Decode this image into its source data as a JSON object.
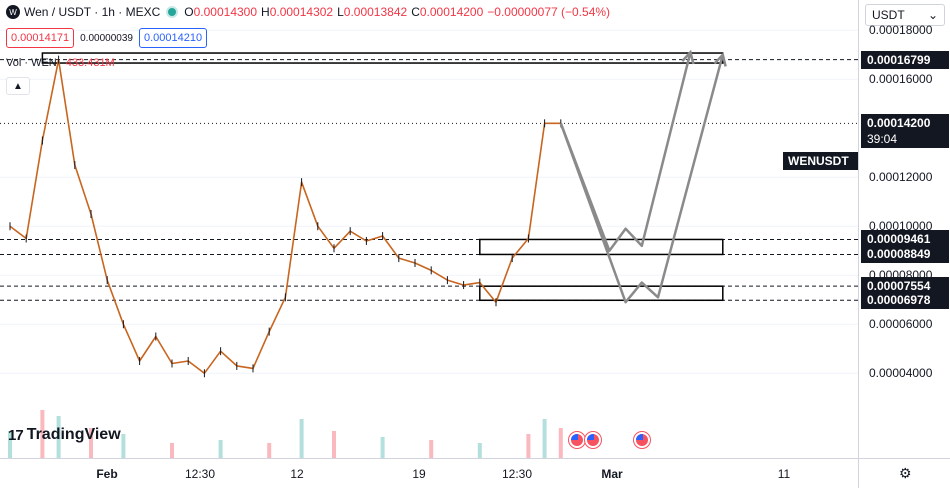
{
  "legend": {
    "symbol_icon": "wen-coin-icon",
    "title": "Wen / USDT · 1h · MEXC",
    "open_label": "O",
    "open": "0.00014300",
    "high_label": "H",
    "high": "0.00014302",
    "low_label": "L",
    "low": "0.00013842",
    "close_label": "C",
    "close": "0.00014200",
    "change": "−0.00000077 (−0.54%)"
  },
  "trade": {
    "sell_price": "0.00014171",
    "spread": "0.00000039",
    "buy_price": "0.00014210"
  },
  "volume": {
    "label": "Vol · WEN",
    "value": "433.431M"
  },
  "collapse_icon": "chevron-up-icon",
  "logo": {
    "mark": "17",
    "text": "TradingView"
  },
  "price_axis": {
    "currency": "USDT",
    "currency_icon": "chevron-down-icon",
    "labels": [
      "0.00018000",
      "0.00016000",
      "0.00012000",
      "0.00010000",
      "0.00008000",
      "0.00006000",
      "0.00004000"
    ],
    "levels": [
      "0.00016799",
      "0.00009461",
      "0.00008849",
      "0.00007554",
      "0.00006978"
    ],
    "last_price": "0.00014200",
    "countdown": "39:04",
    "symbol_tag": "WENUSDT"
  },
  "time_axis": {
    "labels": [
      {
        "text": "Feb",
        "bold": true
      },
      {
        "text": "12:30",
        "bold": false
      },
      {
        "text": "12",
        "bold": false
      },
      {
        "text": "19",
        "bold": false
      },
      {
        "text": "12:30",
        "bold": false
      },
      {
        "text": "Mar",
        "bold": true
      },
      {
        "text": "11",
        "bold": false
      }
    ],
    "settings_icon": "gear-icon"
  },
  "chart_data": {
    "type": "line",
    "title": "",
    "xlabel": "",
    "ylabel": "",
    "ylim": [
      2.2e-05,
      0.000185
    ],
    "x_start": "2024-01-26",
    "x_end": "2024-03-13",
    "series": [
      {
        "values": [
          {
            "date": "2024-01-26",
            "v": 0.0001
          },
          {
            "date": "2024-01-27",
            "v": 9.5e-05
          },
          {
            "date": "2024-01-28",
            "v": 0.000135
          },
          {
            "date": "2024-01-29",
            "v": 0.000168
          },
          {
            "date": "2024-01-30",
            "v": 0.000125
          },
          {
            "date": "2024-01-31",
            "v": 0.000105
          },
          {
            "date": "2024-02-01",
            "v": 7.8e-05
          },
          {
            "date": "2024-02-02",
            "v": 6e-05
          },
          {
            "date": "2024-02-03",
            "v": 4.5e-05
          },
          {
            "date": "2024-02-04",
            "v": 5.5e-05
          },
          {
            "date": "2024-02-05",
            "v": 4.4e-05
          },
          {
            "date": "2024-02-06",
            "v": 4.5e-05
          },
          {
            "date": "2024-02-07",
            "v": 4e-05
          },
          {
            "date": "2024-02-08",
            "v": 4.9e-05
          },
          {
            "date": "2024-02-09",
            "v": 4.3e-05
          },
          {
            "date": "2024-02-10",
            "v": 4.2e-05
          },
          {
            "date": "2024-02-11",
            "v": 5.7e-05
          },
          {
            "date": "2024-02-12",
            "v": 7.1e-05
          },
          {
            "date": "2024-02-13",
            "v": 0.000118
          },
          {
            "date": "2024-02-14",
            "v": 0.0001
          },
          {
            "date": "2024-02-15",
            "v": 9.1e-05
          },
          {
            "date": "2024-02-16",
            "v": 9.8e-05
          },
          {
            "date": "2024-02-17",
            "v": 9.4e-05
          },
          {
            "date": "2024-02-18",
            "v": 9.6e-05
          },
          {
            "date": "2024-02-19",
            "v": 8.7e-05
          },
          {
            "date": "2024-02-20",
            "v": 8.5e-05
          },
          {
            "date": "2024-02-21",
            "v": 8.2e-05
          },
          {
            "date": "2024-02-22",
            "v": 7.8e-05
          },
          {
            "date": "2024-02-23",
            "v": 7.6e-05
          },
          {
            "date": "2024-02-24",
            "v": 7.7e-05
          },
          {
            "date": "2024-02-25",
            "v": 6.9e-05
          },
          {
            "date": "2024-02-26",
            "v": 8.7e-05
          },
          {
            "date": "2024-02-27",
            "v": 9.5e-05
          },
          {
            "date": "2024-02-28",
            "v": 0.000142
          },
          {
            "date": "2024-02-29",
            "v": 0.000142
          }
        ]
      }
    ],
    "volume": [
      {
        "date": "2024-01-26",
        "v": 0.9
      },
      {
        "date": "2024-01-28",
        "v": 1.6
      },
      {
        "date": "2024-01-29",
        "v": 1.4
      },
      {
        "date": "2024-01-31",
        "v": 1.0
      },
      {
        "date": "2024-02-02",
        "v": 0.8
      },
      {
        "date": "2024-02-05",
        "v": 0.5
      },
      {
        "date": "2024-02-08",
        "v": 0.6
      },
      {
        "date": "2024-02-11",
        "v": 0.5
      },
      {
        "date": "2024-02-13",
        "v": 1.3
      },
      {
        "date": "2024-02-15",
        "v": 0.9
      },
      {
        "date": "2024-02-18",
        "v": 0.7
      },
      {
        "date": "2024-02-21",
        "v": 0.6
      },
      {
        "date": "2024-02-24",
        "v": 0.5
      },
      {
        "date": "2024-02-27",
        "v": 0.8
      },
      {
        "date": "2024-02-28",
        "v": 1.3
      },
      {
        "date": "2024-02-29",
        "v": 1.0
      }
    ],
    "horizontal_levels": [
      0.00016799,
      9.461e-05,
      8.849e-05,
      7.554e-05,
      6.978e-05,
      0.000142
    ],
    "zones": [
      {
        "date_start": "2024-01-28",
        "date_end": "2024-03-10",
        "high": 0.0001707,
        "low": 0.00016799
      },
      {
        "date_start": "2024-02-24",
        "date_end": "2024-03-10",
        "high": 9.461e-05,
        "low": 8.849e-05
      },
      {
        "date_start": "2024-02-24",
        "date_end": "2024-03-10",
        "high": 7.554e-05,
        "low": 6.978e-05
      }
    ],
    "projections": [
      [
        {
          "date": "2024-02-29",
          "v": 0.000142
        },
        {
          "date": "2024-03-03",
          "v": 9e-05
        },
        {
          "date": "2024-03-04",
          "v": 9.9e-05
        },
        {
          "date": "2024-03-05",
          "v": 9.2e-05
        },
        {
          "date": "2024-03-08",
          "v": 0.000171
        }
      ],
      [
        {
          "date": "2024-02-29",
          "v": 0.000142
        },
        {
          "date": "2024-03-04",
          "v": 6.9e-05
        },
        {
          "date": "2024-03-05",
          "v": 7.7e-05
        },
        {
          "date": "2024-03-06",
          "v": 7.1e-05
        },
        {
          "date": "2024-03-10",
          "v": 0.00017
        }
      ]
    ],
    "events": [
      "2024-03-01",
      "2024-03-02",
      "2024-03-05"
    ]
  }
}
